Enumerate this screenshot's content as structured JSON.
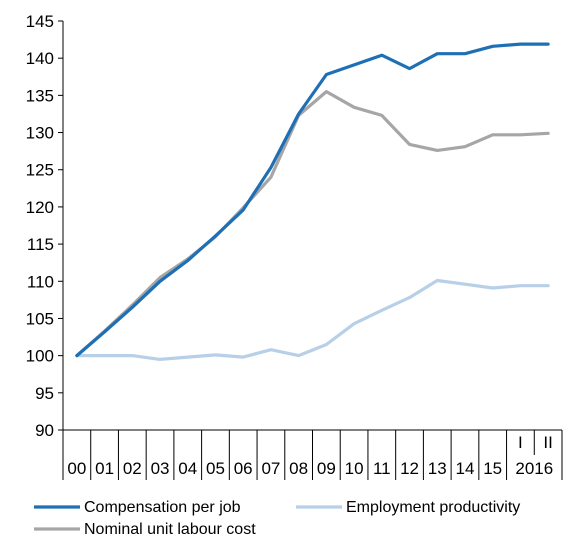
{
  "chart_data": {
    "type": "line",
    "title": "",
    "xlabel": "",
    "ylabel": "",
    "ylim": [
      90,
      145
    ],
    "yticks": [
      90,
      95,
      100,
      105,
      110,
      115,
      120,
      125,
      130,
      135,
      140,
      145
    ],
    "categories": [
      "00",
      "01",
      "02",
      "03",
      "04",
      "05",
      "06",
      "07",
      "08",
      "09",
      "10",
      "11",
      "12",
      "13",
      "14",
      "15",
      "I",
      "II"
    ],
    "year_group": {
      "label": "2016",
      "covers": [
        "I",
        "II"
      ]
    },
    "grid": false,
    "legend_position": "bottom",
    "series": [
      {
        "name": "Compensation per job",
        "color": "#1f6fb5",
        "values": [
          100.0,
          103.2,
          106.5,
          110.0,
          112.8,
          116.1,
          119.6,
          125.3,
          132.5,
          137.8,
          139.1,
          140.4,
          138.6,
          140.6,
          140.6,
          141.6,
          141.9,
          141.9
        ]
      },
      {
        "name": "Employment productivity",
        "color": "#b8cfe8",
        "values": [
          100.0,
          100.0,
          100.0,
          99.5,
          99.8,
          100.1,
          99.8,
          100.8,
          100.0,
          101.5,
          104.3,
          106.1,
          107.8,
          110.1,
          109.6,
          109.1,
          109.4,
          109.4
        ]
      },
      {
        "name": "Nominal unit labour cost",
        "color": "#a6a6a6",
        "values": [
          100.0,
          103.3,
          106.8,
          110.5,
          113.0,
          116.0,
          119.9,
          124.0,
          132.3,
          135.5,
          133.4,
          132.3,
          128.4,
          127.6,
          128.1,
          129.7,
          129.7,
          129.9
        ]
      }
    ]
  }
}
